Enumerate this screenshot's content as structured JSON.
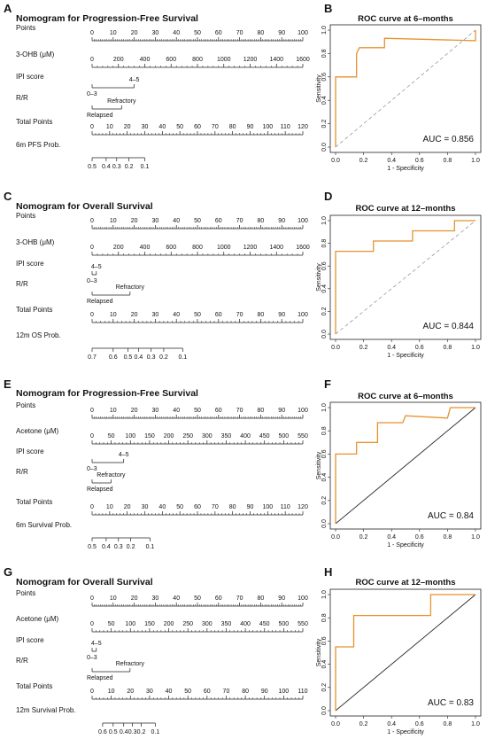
{
  "chart_data": [
    {
      "type": "nomogram",
      "panel": "A",
      "title": "Nomogram for Progression-Free Survival",
      "rows": [
        {
          "label": "Points",
          "kind": "axis",
          "min": 0,
          "max": 100,
          "labels": [
            0,
            10,
            20,
            30,
            40,
            50,
            60,
            70,
            80,
            90,
            100
          ]
        },
        {
          "label": "3-OHB (μM)",
          "kind": "axis",
          "min": 0,
          "max": 1600,
          "span": [
            0,
            100
          ],
          "labels": [
            0,
            200,
            400,
            600,
            800,
            1000,
            1200,
            1400,
            1600
          ]
        },
        {
          "label": "IPI score",
          "kind": "categorical",
          "levels": [
            {
              "label": "0–3",
              "points": 0
            },
            {
              "label": "4–5",
              "points": 20
            }
          ]
        },
        {
          "label": "R/R",
          "kind": "categorical",
          "levels": [
            {
              "label": "Relapsed",
              "points": 0
            },
            {
              "label": "Refractory",
              "points": 14
            }
          ]
        },
        {
          "label": "Total Points",
          "kind": "axis",
          "min": 0,
          "max": 120,
          "labels": [
            0,
            10,
            20,
            30,
            40,
            50,
            60,
            70,
            80,
            90,
            100,
            110,
            120
          ]
        },
        {
          "label": "6m PFS Prob.",
          "kind": "axis-values",
          "points_per_value": [
            [
              0.5,
              0
            ],
            [
              0.4,
              8
            ],
            [
              0.3,
              14
            ],
            [
              0.2,
              21
            ],
            [
              0.1,
              30
            ]
          ]
        }
      ]
    },
    {
      "type": "nomogram",
      "panel": "C",
      "title": "Nomogram for Overall Survival",
      "rows": [
        {
          "label": "Points",
          "kind": "axis",
          "min": 0,
          "max": 100,
          "labels": [
            0,
            10,
            20,
            30,
            40,
            50,
            60,
            70,
            80,
            90,
            100
          ]
        },
        {
          "label": "3-OHB (μM)",
          "kind": "axis",
          "min": 0,
          "max": 1600,
          "span": [
            0,
            100
          ],
          "labels": [
            0,
            200,
            400,
            600,
            800,
            1000,
            1200,
            1400,
            1600
          ]
        },
        {
          "label": "IPI score",
          "kind": "categorical",
          "levels": [
            {
              "label": "0–3",
              "points": 0
            },
            {
              "label": "4–5",
              "points": 2
            }
          ]
        },
        {
          "label": "R/R",
          "kind": "categorical",
          "levels": [
            {
              "label": "Relapsed",
              "points": 0
            },
            {
              "label": "Refractory",
              "points": 18
            }
          ]
        },
        {
          "label": "Total Points",
          "kind": "axis",
          "min": 0,
          "max": 100,
          "labels": [
            0,
            10,
            20,
            30,
            40,
            50,
            60,
            70,
            80,
            90,
            100
          ]
        },
        {
          "label": "12m OS Prob.",
          "kind": "axis-values",
          "points_per_value": [
            [
              0.7,
              0
            ],
            [
              0.6,
              10
            ],
            [
              0.5,
              17
            ],
            [
              0.4,
              22
            ],
            [
              0.3,
              28
            ],
            [
              0.2,
              34
            ],
            [
              0.1,
              43
            ]
          ]
        }
      ]
    },
    {
      "type": "nomogram",
      "panel": "E",
      "title": "Nomogram for Progression-Free Survival",
      "rows": [
        {
          "label": "Points",
          "kind": "axis",
          "min": 0,
          "max": 100,
          "labels": [
            0,
            10,
            20,
            30,
            40,
            50,
            60,
            70,
            80,
            90,
            100
          ]
        },
        {
          "label": "Acetone (μM)",
          "kind": "axis",
          "min": 0,
          "max": 550,
          "span": [
            0,
            100
          ],
          "labels": [
            0,
            50,
            100,
            150,
            200,
            250,
            300,
            350,
            400,
            450,
            500,
            550
          ]
        },
        {
          "label": "IPI score",
          "kind": "categorical",
          "levels": [
            {
              "label": "0–3",
              "points": 0
            },
            {
              "label": "4–5",
              "points": 15
            }
          ]
        },
        {
          "label": "R/R",
          "kind": "categorical",
          "levels": [
            {
              "label": "Relapsed",
              "points": 0
            },
            {
              "label": "Refractory",
              "points": 9
            }
          ]
        },
        {
          "label": "Total Points",
          "kind": "axis",
          "min": 0,
          "max": 120,
          "labels": [
            0,
            10,
            20,
            30,
            40,
            50,
            60,
            70,
            80,
            90,
            100,
            110,
            120
          ]
        },
        {
          "label": "6m Survival Prob.",
          "kind": "axis-values",
          "points_per_value": [
            [
              0.5,
              0
            ],
            [
              0.4,
              8
            ],
            [
              0.3,
              15
            ],
            [
              0.2,
              22
            ],
            [
              0.1,
              33
            ]
          ]
        }
      ]
    },
    {
      "type": "nomogram",
      "panel": "G",
      "title": "Nomogram for Overall Survival",
      "rows": [
        {
          "label": "Points",
          "kind": "axis",
          "min": 0,
          "max": 100,
          "labels": [
            0,
            10,
            20,
            30,
            40,
            50,
            60,
            70,
            80,
            90,
            100
          ]
        },
        {
          "label": "Acetone (μM)",
          "kind": "axis",
          "min": 0,
          "max": 550,
          "span": [
            0,
            100
          ],
          "labels": [
            0,
            50,
            100,
            150,
            200,
            250,
            300,
            350,
            400,
            450,
            500,
            550
          ]
        },
        {
          "label": "IPI score",
          "kind": "categorical",
          "levels": [
            {
              "label": "0–3",
              "points": 0
            },
            {
              "label": "4–5",
              "points": 2
            }
          ]
        },
        {
          "label": "R/R",
          "kind": "categorical",
          "levels": [
            {
              "label": "Relapsed",
              "points": 0
            },
            {
              "label": "Refractory",
              "points": 18
            }
          ]
        },
        {
          "label": "Total Points",
          "kind": "axis",
          "min": 0,
          "max": 110,
          "labels": [
            0,
            10,
            20,
            30,
            40,
            50,
            60,
            70,
            80,
            90,
            100,
            110
          ]
        },
        {
          "label": "12m Survival Prob.",
          "kind": "axis-values",
          "points_per_value": [
            [
              0.6,
              6
            ],
            [
              0.5,
              12
            ],
            [
              0.4,
              18
            ],
            [
              0.3,
              23
            ],
            [
              0.2,
              28
            ],
            [
              0.1,
              36
            ]
          ]
        }
      ]
    },
    {
      "type": "line",
      "panel": "B",
      "title": "ROC curve at 6–months",
      "xlabel": "1 - Specificity",
      "ylabel": "Sensitivity",
      "xlim": [
        0,
        1
      ],
      "ylim": [
        0,
        1
      ],
      "xticks": [
        "0.0",
        "0.2",
        "0.4",
        "0.6",
        "0.8",
        "1.0"
      ],
      "yticks": [
        "0.0",
        "0.2",
        "0.4",
        "0.6",
        "0.8",
        "1.0"
      ],
      "diagonal": "dashed",
      "curve_color": "#E8912F",
      "curve": [
        [
          0,
          0
        ],
        [
          0,
          0.6
        ],
        [
          0.15,
          0.6
        ],
        [
          0.15,
          0.8
        ],
        [
          0.17,
          0.85
        ],
        [
          0.35,
          0.85
        ],
        [
          0.35,
          0.93
        ],
        [
          1,
          0.91
        ],
        [
          1,
          1
        ]
      ],
      "auc": "0.856"
    },
    {
      "type": "line",
      "panel": "D",
      "title": "ROC curve at 12–months",
      "xlabel": "1 - Specificity",
      "ylabel": "Sensitivity",
      "xlim": [
        0,
        1
      ],
      "ylim": [
        0,
        1
      ],
      "xticks": [
        "0.0",
        "0.2",
        "0.4",
        "0.6",
        "0.8",
        "1.0"
      ],
      "yticks": [
        "0.0",
        "0.2",
        "0.4",
        "0.6",
        "0.8",
        "1.0"
      ],
      "diagonal": "dashed",
      "curve_color": "#E8912F",
      "curve": [
        [
          0,
          0
        ],
        [
          0,
          0.73
        ],
        [
          0.27,
          0.73
        ],
        [
          0.27,
          0.82
        ],
        [
          0.55,
          0.82
        ],
        [
          0.55,
          0.91
        ],
        [
          0.85,
          0.91
        ],
        [
          0.85,
          1
        ],
        [
          1,
          1
        ]
      ],
      "auc": "0.844"
    },
    {
      "type": "line",
      "panel": "F",
      "title": "ROC curve at 6–months",
      "xlabel": "1 - Specificity",
      "ylabel": "Sensitivity",
      "xlim": [
        0,
        1
      ],
      "ylim": [
        0,
        1
      ],
      "xticks": [
        "0.0",
        "0.2",
        "0.4",
        "0.6",
        "0.8",
        "1.0"
      ],
      "yticks": [
        "0.0",
        "0.2",
        "0.4",
        "0.6",
        "0.8",
        "1.0"
      ],
      "diagonal": "solid",
      "curve_color": "#E8912F",
      "curve": [
        [
          0,
          0
        ],
        [
          0,
          0.6
        ],
        [
          0.15,
          0.6
        ],
        [
          0.15,
          0.7
        ],
        [
          0.3,
          0.7
        ],
        [
          0.3,
          0.87
        ],
        [
          0.48,
          0.87
        ],
        [
          0.5,
          0.93
        ],
        [
          0.8,
          0.91
        ],
        [
          0.82,
          1
        ],
        [
          1,
          1
        ]
      ],
      "auc": "0.84"
    },
    {
      "type": "line",
      "panel": "H",
      "title": "ROC curve at 12–months",
      "xlabel": "1 - Specificity",
      "ylabel": "Sensitivity",
      "xlim": [
        0,
        1
      ],
      "ylim": [
        0,
        1
      ],
      "xticks": [
        "0.0",
        "0.2",
        "0.4",
        "0.6",
        "0.8",
        "1.0"
      ],
      "yticks": [
        "0.0",
        "0.2",
        "0.4",
        "0.6",
        "0.8",
        "1.0"
      ],
      "diagonal": "solid",
      "curve_color": "#E8912F",
      "curve": [
        [
          0,
          0
        ],
        [
          0,
          0.55
        ],
        [
          0.13,
          0.55
        ],
        [
          0.13,
          0.82
        ],
        [
          0.68,
          0.82
        ],
        [
          0.68,
          1
        ],
        [
          1,
          1
        ]
      ],
      "auc": "0.83"
    }
  ]
}
